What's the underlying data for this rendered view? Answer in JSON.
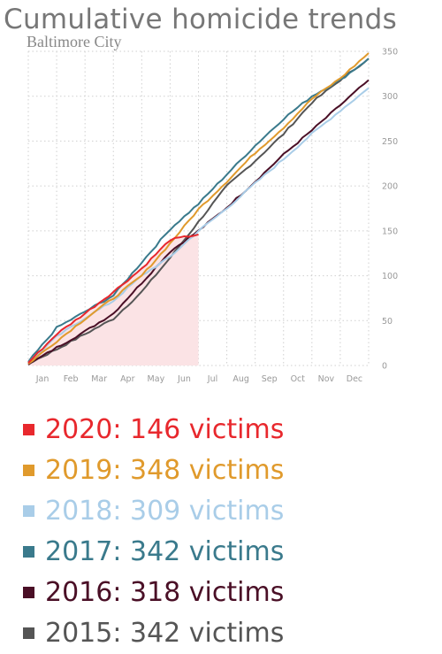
{
  "title": "Cumulative homicide trends",
  "subtitle": "Baltimore City",
  "chart_data": {
    "type": "line",
    "title": "Cumulative homicide trends",
    "subtitle": "Baltimore City",
    "x_tick_labels": [
      "Jan",
      "Feb",
      "Mar",
      "Apr",
      "May",
      "Jun",
      "Jul",
      "Aug",
      "Sep",
      "Oct",
      "Nov",
      "Dec"
    ],
    "y_ticks": [
      0,
      50,
      100,
      150,
      200,
      250,
      300,
      350
    ],
    "ylim": [
      0,
      350
    ],
    "y_axis_side": "right",
    "grid": "dotted",
    "legend_position": "bottom",
    "series": [
      {
        "name": "2015",
        "label": "2015: 342 victims",
        "color": "#555555",
        "total": 342,
        "values": [
          2,
          18,
          35,
          52,
          82,
          120,
          160,
          200,
          228,
          258,
          293,
          318,
          342
        ]
      },
      {
        "name": "2016",
        "label": "2016: 318 victims",
        "color": "#4a0f26",
        "total": 318,
        "values": [
          1,
          20,
          38,
          58,
          92,
          127,
          150,
          176,
          205,
          235,
          262,
          290,
          318
        ]
      },
      {
        "name": "2017",
        "label": "2017: 342 victims",
        "color": "#3a7a8c",
        "total": 342,
        "values": [
          4,
          42,
          60,
          78,
          115,
          152,
          180,
          213,
          245,
          275,
          300,
          318,
          342
        ]
      },
      {
        "name": "2018",
        "label": "2018: 309 victims",
        "color": "#a9cde8",
        "total": 309,
        "values": [
          3,
          32,
          53,
          72,
          100,
          121,
          150,
          175,
          203,
          230,
          258,
          284,
          309
        ]
      },
      {
        "name": "2019",
        "label": "2019: 348 victims",
        "color": "#e09a2c",
        "total": 348,
        "values": [
          2,
          27,
          52,
          75,
          100,
          136,
          174,
          205,
          237,
          265,
          297,
          320,
          348
        ]
      },
      {
        "name": "2020",
        "label": "2020: 146 victims",
        "color": "#e8282d",
        "total": 146,
        "values": [
          3,
          35,
          58,
          82,
          108,
          140,
          146
        ]
      }
    ]
  },
  "legend": [
    {
      "label": "2020: 146 victims",
      "color": "#e8282d"
    },
    {
      "label": "2019: 348 victims",
      "color": "#e09a2c"
    },
    {
      "label": "2018: 309 victims",
      "color": "#a9cde8"
    },
    {
      "label": "2017: 342 victims",
      "color": "#3a7a8c"
    },
    {
      "label": "2016: 318 victims",
      "color": "#4a0f26"
    },
    {
      "label": "2015: 342 victims",
      "color": "#555555"
    }
  ]
}
